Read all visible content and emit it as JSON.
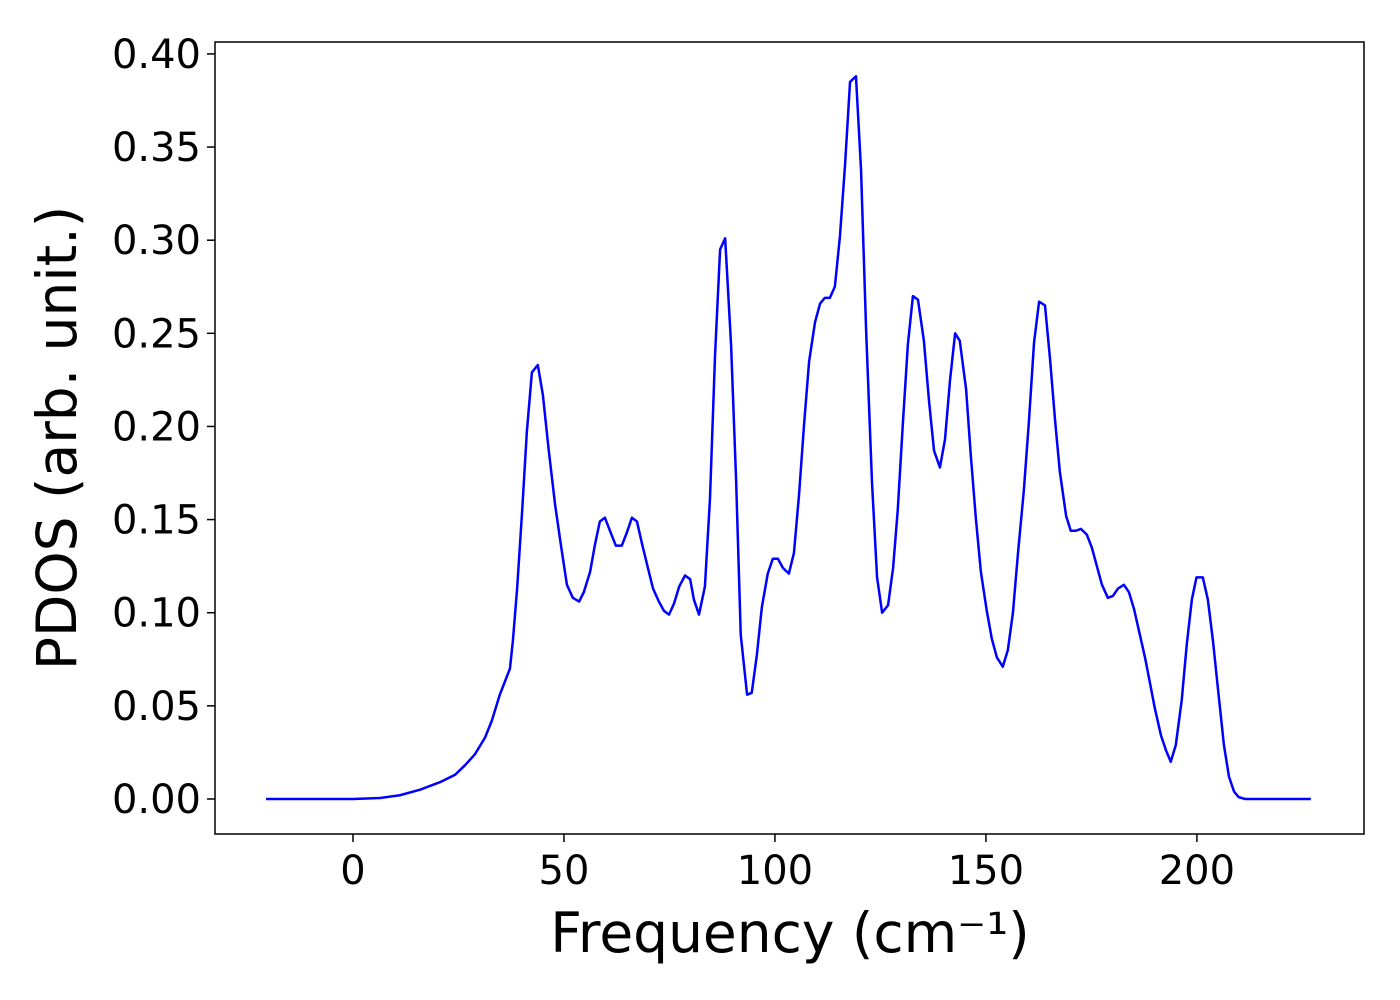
{
  "chart_data": {
    "type": "line",
    "xlabel": "Frequency (cm⁻¹)",
    "ylabel": "PDOS (arb. unit.)",
    "color": "#0000ff",
    "x": [
      -20.6,
      0,
      4.0,
      6.4,
      11.1,
      15.9,
      20.6,
      24.2,
      26.5,
      28.9,
      31.3,
      32.9,
      34.8,
      36.0,
      37.2,
      37.9,
      38.9,
      40.1,
      41.2,
      42.4,
      43.8,
      45.0,
      46.4,
      47.9,
      49.3,
      50.7,
      52.1,
      53.6,
      54.7,
      56.2,
      57.3,
      58.5,
      59.7,
      60.9,
      62.3,
      63.7,
      64.9,
      66.1,
      67.3,
      68.5,
      69.9,
      71.1,
      72.5,
      73.7,
      74.9,
      76.1,
      77.3,
      78.7,
      79.9,
      80.8,
      82.0,
      83.4,
      84.6,
      85.8,
      87.0,
      88.2,
      89.6,
      90.8,
      91.9,
      93.4,
      94.5,
      95.7,
      96.9,
      98.3,
      99.5,
      100.7,
      101.9,
      103.3,
      104.5,
      105.7,
      106.9,
      108.1,
      109.5,
      110.7,
      111.8,
      113.0,
      114.2,
      115.4,
      116.6,
      117.8,
      119.2,
      120.4,
      121.6,
      123.0,
      124.2,
      125.4,
      126.8,
      128.0,
      129.1,
      130.3,
      131.5,
      132.7,
      133.9,
      135.3,
      136.5,
      137.7,
      139.1,
      140.3,
      141.5,
      142.7,
      143.8,
      145.3,
      146.4,
      147.6,
      148.8,
      150.2,
      151.4,
      152.6,
      154.0,
      155.2,
      156.4,
      157.6,
      159.0,
      160.2,
      161.4,
      162.6,
      164.0,
      165.2,
      166.4,
      167.5,
      169.0,
      170.1,
      171.3,
      172.5,
      173.9,
      175.1,
      176.3,
      177.5,
      178.9,
      180.1,
      181.3,
      182.7,
      183.9,
      185.1,
      186.5,
      187.7,
      188.9,
      190.0,
      191.5,
      192.7,
      193.8,
      195.0,
      196.4,
      197.6,
      198.8,
      199.9,
      201.4,
      202.6,
      203.8,
      205.0,
      206.4,
      207.6,
      208.8,
      209.9,
      211.4,
      227.0
    ],
    "values": [
      0,
      0,
      0.0003,
      0.0005,
      0.002,
      0.005,
      0.009,
      0.013,
      0.018,
      0.024,
      0.033,
      0.042,
      0.056,
      0.063,
      0.07,
      0.085,
      0.113,
      0.155,
      0.197,
      0.229,
      0.233,
      0.217,
      0.187,
      0.158,
      0.136,
      0.115,
      0.108,
      0.106,
      0.111,
      0.122,
      0.136,
      0.149,
      0.151,
      0.144,
      0.136,
      0.136,
      0.143,
      0.151,
      0.149,
      0.137,
      0.124,
      0.113,
      0.106,
      0.101,
      0.099,
      0.105,
      0.114,
      0.12,
      0.118,
      0.107,
      0.099,
      0.114,
      0.161,
      0.238,
      0.295,
      0.301,
      0.244,
      0.171,
      0.088,
      0.056,
      0.057,
      0.077,
      0.103,
      0.121,
      0.129,
      0.129,
      0.124,
      0.121,
      0.132,
      0.163,
      0.201,
      0.235,
      0.256,
      0.266,
      0.269,
      0.269,
      0.275,
      0.302,
      0.34,
      0.385,
      0.388,
      0.338,
      0.252,
      0.17,
      0.119,
      0.1,
      0.104,
      0.124,
      0.155,
      0.201,
      0.244,
      0.27,
      0.268,
      0.246,
      0.214,
      0.187,
      0.178,
      0.193,
      0.225,
      0.25,
      0.246,
      0.22,
      0.185,
      0.151,
      0.122,
      0.101,
      0.086,
      0.076,
      0.071,
      0.08,
      0.1,
      0.132,
      0.166,
      0.203,
      0.245,
      0.267,
      0.265,
      0.236,
      0.203,
      0.176,
      0.152,
      0.144,
      0.144,
      0.145,
      0.142,
      0.135,
      0.125,
      0.115,
      0.108,
      0.109,
      0.113,
      0.115,
      0.111,
      0.102,
      0.088,
      0.076,
      0.062,
      0.049,
      0.034,
      0.026,
      0.02,
      0.029,
      0.053,
      0.083,
      0.107,
      0.119,
      0.119,
      0.107,
      0.085,
      0.059,
      0.029,
      0.012,
      0.004,
      0.001,
      0,
      0
    ],
    "xlim": [
      -32.7,
      239.6
    ],
    "ylim": [
      -0.0188,
      0.4064
    ],
    "xticks": [
      0,
      50,
      100,
      150,
      200
    ],
    "yticks": [
      {
        "value": 0,
        "label": "0.00"
      },
      {
        "value": 0.05,
        "label": "0.05"
      },
      {
        "value": 0.1,
        "label": "0.10"
      },
      {
        "value": 0.15,
        "label": "0.15"
      },
      {
        "value": 0.2,
        "label": "0.20"
      },
      {
        "value": 0.25,
        "label": "0.25"
      },
      {
        "value": 0.3,
        "label": "0.30"
      },
      {
        "value": 0.35,
        "label": "0.35"
      },
      {
        "value": 0.4,
        "label": "0.40"
      }
    ]
  }
}
